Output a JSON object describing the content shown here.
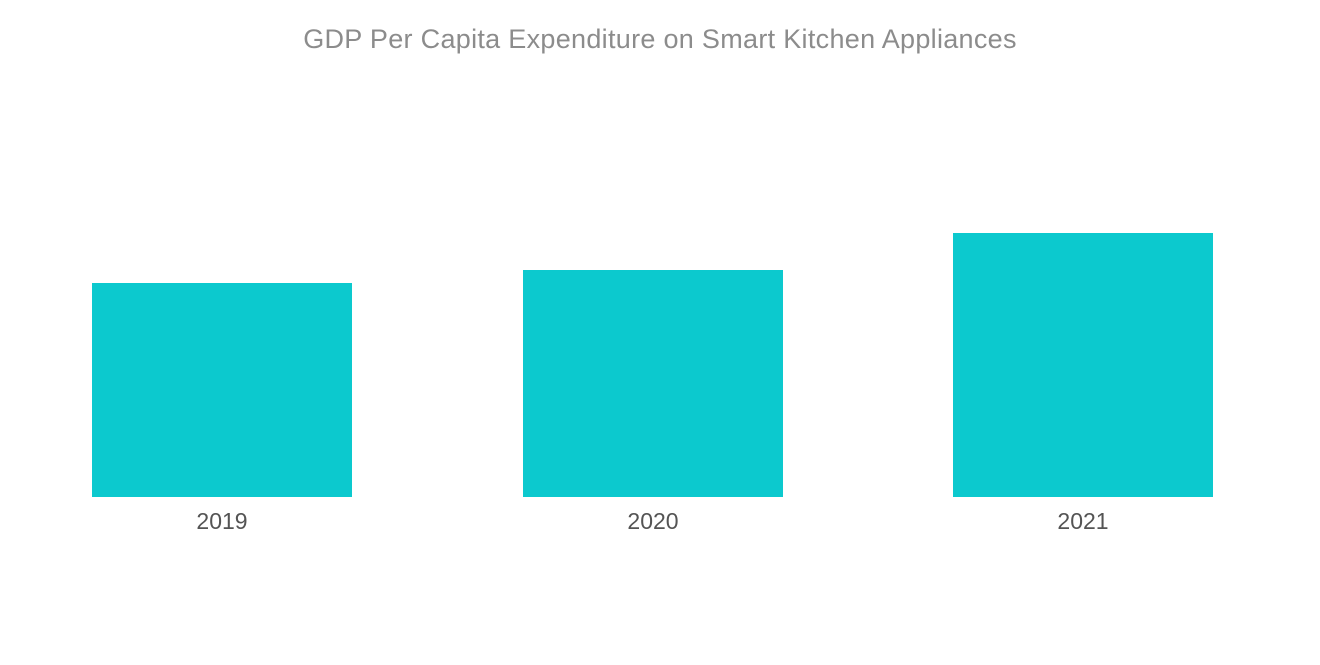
{
  "chart_data": {
    "type": "bar",
    "title": "GDP Per Capita Expenditure on Smart Kitchen Appliances",
    "categories": [
      "2019",
      "2020",
      "2021"
    ],
    "values": [
      81,
      86,
      100
    ],
    "series": [
      {
        "name": "GDP Per Capita Expenditure",
        "values": [
          81,
          86,
          100
        ]
      }
    ],
    "xlabel": "",
    "ylabel": "",
    "ylim": [
      0,
      100
    ],
    "value_axis_shown": false,
    "data_labels_shown": false,
    "grid": false,
    "legend": "none",
    "bar_color": "#0cc9ce",
    "title_color": "#8c8c8c",
    "tick_label_color": "#545454",
    "background_color": "#ffffff"
  }
}
